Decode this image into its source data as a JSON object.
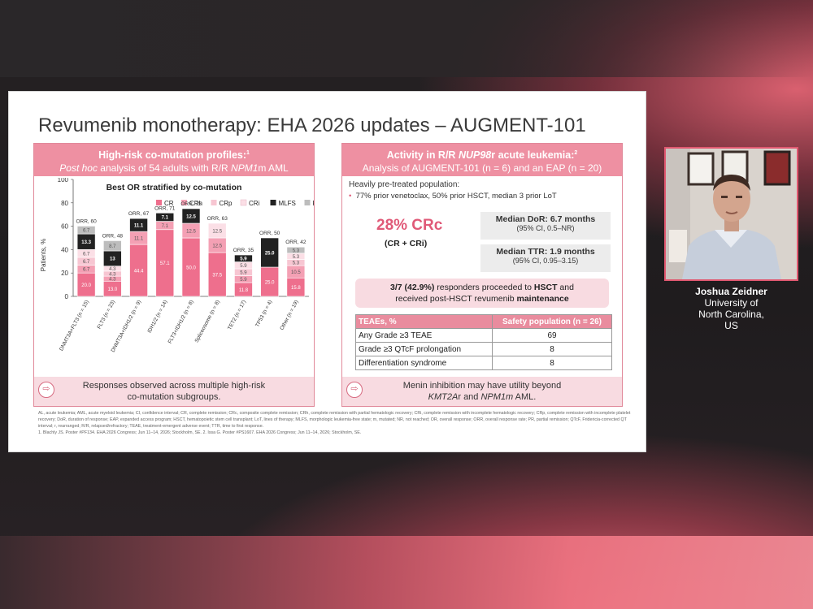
{
  "slide": {
    "title": "Revumenib monotherapy: EHA 2026 updates – AUGMENT-101",
    "left": {
      "head1": "High-risk co-mutation profiles:",
      "head1_sup": "1",
      "head2_a": "Post hoc",
      "head2_b": " analysis of 54 adults with R/R ",
      "head2_c": "NPM1",
      "head2_d": "m AML",
      "footer_line1": "Responses observed across multiple high-risk",
      "footer_line2": "co-mutation subgroups."
    },
    "right": {
      "head1_a": "Activity in R/R ",
      "head1_b": "NUP98",
      "head1_c": "r acute leukemia:",
      "head1_sup": "2",
      "head2": "Analysis of AUGMENT-101 (n = 6) and an EAP (n = 20)",
      "pretreated_label": "Heavily pre-treated population:",
      "pretreated_bullet": "77% prior venetoclax, 50% prior HSCT, median 3 prior LoT",
      "crc_value": "28% CRc",
      "crc_sub": "(CR + CRi)",
      "dor_label": "Median DoR: 6.7 months",
      "dor_ci": "(95% CI, 0.5–NR)",
      "ttr_label": "Median TTR: 1.9 months",
      "ttr_ci": "(95% CI, 0.95–3.15)",
      "hsct_a": "3/7 (42.9%)",
      "hsct_b": " responders proceeded to ",
      "hsct_c": "HSCT",
      "hsct_d": " and",
      "hsct_e": "received post-HSCT revumenib ",
      "hsct_f": "maintenance",
      "table_headers": [
        "TEAEs, %",
        "Safety population (n = 26)"
      ],
      "table_rows": [
        [
          "Any Grade ≥3 TEAE",
          "69"
        ],
        [
          "Grade ≥3 QTcF prolongation",
          "8"
        ],
        [
          "Differentiation syndrome",
          "8"
        ]
      ],
      "footer_line1": "Menin inhibition may have utility beyond",
      "footer_line2a": "KMT2A",
      "footer_line2b": "r and ",
      "footer_line2c": "NPM1m",
      "footer_line2d": " AML."
    },
    "footnotes": "AL, acute leukemia; AML, acute myeloid leukemia; CI, confidence interval; CR, complete remission; CRc, composite complete remission; CRh, complete remission with partial hematologic recovery; CRi, complete remission with incomplete hematologic recovery; CRp, complete remission with incomplete platelet recovery; DoR, duration of response; EAP, expanded access program; HSCT, hematopoietic stem cell transplant; LoT, lines of therapy; MLFS, morphologic leukemia-free state; m, mutated; NR, not reached; OR, overall response; ORR, overall response rate; PR, partial remission; QTcF, Fridericia-corrected QT interval; r, rearranged; R/R, relapsed/refractory; TEAE, treatment-emergent adverse event; TTR, time to first response.",
    "references": "1. Blachly JS. Poster #PF134. EHA 2026 Congress; Jun 11–14, 2026; Stockholm, SE. 2. Issa G. Poster #PS1607. EHA 2026 Congress; Jun 11–14, 2026; Stockholm, SE."
  },
  "speaker": {
    "name": "Joshua Zeidner",
    "affil1": "University of",
    "affil2": "North Carolina,",
    "affil3": "US"
  },
  "chart_data": {
    "type": "bar",
    "title": "Best OR stratified by co-mutation",
    "ylabel": "Patients, %",
    "ylim": [
      0,
      100
    ],
    "yticks": [
      0,
      20,
      40,
      60,
      80,
      100
    ],
    "categories": [
      "DNMT3A+FLT3 (n = 15)",
      "FLT3 (n = 23)",
      "DNMT3A+IDH1/2 (n = 9)",
      "IDH1/2 (n = 14)",
      "FLT3+IDH1/2 (n = 8)",
      "Spliceosome (n = 8)",
      "TET2 (n = 17)",
      "TP53 (n = 4)",
      "Other (n = 19)"
    ],
    "orr_labels": [
      "ORR, 60",
      "ORR, 48",
      "ORR, 67",
      "ORR, 71",
      "ORR, 75",
      "ORR, 63",
      "ORR, 35",
      "ORR, 50",
      "ORR, 42"
    ],
    "series": [
      {
        "name": "CR",
        "color": "#ee6f8d",
        "values": [
          20.0,
          13.0,
          44.4,
          57.1,
          50.0,
          37.5,
          11.8,
          25.0,
          15.8
        ]
      },
      {
        "name": "CRh",
        "color": "#f4a0b4",
        "values": [
          6.7,
          4.3,
          11.1,
          7.1,
          12.5,
          12.5,
          5.9,
          0,
          10.5
        ]
      },
      {
        "name": "CRp",
        "color": "#f7c6d2",
        "values": [
          6.7,
          4.3,
          0,
          0,
          0,
          0,
          5.9,
          0,
          5.3
        ]
      },
      {
        "name": "CRi",
        "color": "#fbdfe6",
        "values": [
          6.7,
          4.3,
          0,
          0,
          0,
          12.5,
          5.9,
          0,
          5.3
        ]
      },
      {
        "name": "MLFS",
        "color": "#222222",
        "values": [
          13.3,
          13.0,
          11.1,
          7.1,
          12.5,
          0,
          5.9,
          25.0,
          0
        ]
      },
      {
        "name": "PR",
        "color": "#bdbdbd",
        "values": [
          6.7,
          8.7,
          0,
          0,
          0,
          0,
          0,
          0,
          5.3
        ]
      }
    ],
    "bar_labels": [
      {
        "CR": "20.0",
        "CRh": "6.7",
        "CRp": "6.7",
        "CRi": "6.7",
        "MLFS": "13.3",
        "PR": "6.7"
      },
      {
        "CR": "13.0",
        "CRh": "4.3",
        "CRp": "4.3",
        "CRi": "4.3",
        "MLFS": "13",
        "PR": "8.7"
      },
      {
        "CR": "44.4",
        "CRh": "11.1",
        "MLFS": "11.1"
      },
      {
        "CR": "57.1",
        "CRh": "7.1",
        "MLFS": "7.1"
      },
      {
        "CR": "50.0",
        "CRh": "12.5",
        "MLFS": "12.5"
      },
      {
        "CR": "37.5",
        "CRh": "12.5",
        "CRi": "12.5"
      },
      {
        "CR": "11.8",
        "CRh": "5.9",
        "CRp": "5.9",
        "CRi": "5.9",
        "MLFS": "5.9"
      },
      {
        "CR": "25.0",
        "MLFS": "25.0"
      },
      {
        "CR": "15.8",
        "CRh": "10.5",
        "CRp": "5.3",
        "CRi": "5.3",
        "PR": "5.3"
      }
    ],
    "legend": "top"
  },
  "colors": {
    "accent": "#ee90a2",
    "panel_border": "#e1899a",
    "crc_text": "#e05a78",
    "webcam_border": "#e05870"
  }
}
